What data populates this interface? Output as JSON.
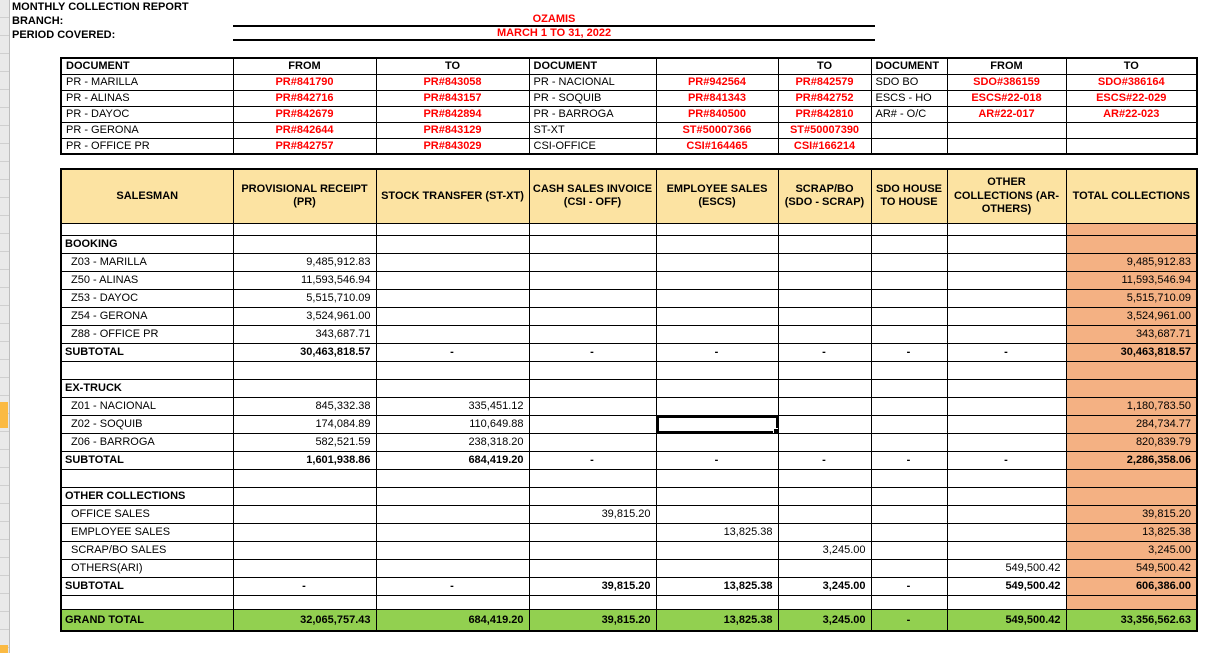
{
  "header": {
    "title": "MONTHLY COLLECTION REPORT",
    "branch_label": "BRANCH:",
    "branch_value": "OZAMIS",
    "period_label": "PERIOD COVERED:",
    "period_value": "MARCH 1 TO 31, 2022"
  },
  "document_table": {
    "header_row": [
      "DOCUMENT",
      "FROM",
      "TO",
      "DOCUMENT",
      "",
      "TO",
      "DOCUMENT",
      "FROM",
      "TO"
    ],
    "rows": [
      [
        "PR - MARILLA",
        "PR#841790",
        "PR#843058",
        "PR - NACIONAL",
        "PR#942564",
        "PR#842579",
        "SDO BO",
        "SDO#386159",
        "SDO#386164"
      ],
      [
        "PR - ALINAS",
        "PR#842716",
        "PR#843157",
        "PR - SOQUIB",
        "PR#841343",
        "PR#842752",
        "ESCS - HO",
        "ESCS#22-018",
        "ESCS#22-029"
      ],
      [
        "PR - DAYOC",
        "PR#842679",
        "PR#842894",
        "PR - BARROGA",
        "PR#840500",
        "PR#842810",
        "AR# - O/C",
        "AR#22-017",
        "AR#22-023"
      ],
      [
        "PR - GERONA",
        "PR#842644",
        "PR#843129",
        "ST-XT",
        "ST#50007366",
        "ST#50007390",
        "",
        "",
        ""
      ],
      [
        "PR - OFFICE PR",
        "PR#842757",
        "PR#843029",
        "CSI-OFFICE",
        "CSI#164465",
        "CSI#166214",
        "",
        "",
        ""
      ]
    ]
  },
  "collections_table": {
    "columns": [
      "SALESMAN",
      "PROVISIONAL RECEIPT (PR)",
      "STOCK TRANSFER (ST-XT)",
      "CASH SALES INVOICE (CSI - OFF)",
      "EMPLOYEE SALES (ESCS)",
      "SCRAP/BO (SDO - SCRAP)",
      "SDO HOUSE TO HOUSE",
      "OTHER COLLECTIONS (AR-OTHERS)",
      "TOTAL COLLECTIONS"
    ],
    "rows": [
      {
        "type": "spacer",
        "h": 12
      },
      {
        "type": "section",
        "label": "BOOKING"
      },
      {
        "type": "detail",
        "label": "Z03 - MARILLA",
        "values": [
          "9,485,912.83",
          "",
          "",
          "",
          "",
          "",
          "",
          "9,485,912.83"
        ]
      },
      {
        "type": "detail",
        "label": "Z50 - ALINAS",
        "values": [
          "11,593,546.94",
          "",
          "",
          "",
          "",
          "",
          "",
          "11,593,546.94"
        ]
      },
      {
        "type": "detail",
        "label": "Z53 - DAYOC",
        "values": [
          "5,515,710.09",
          "",
          "",
          "",
          "",
          "",
          "",
          "5,515,710.09"
        ]
      },
      {
        "type": "detail",
        "label": "Z54 - GERONA",
        "values": [
          "3,524,961.00",
          "",
          "",
          "",
          "",
          "",
          "",
          "3,524,961.00"
        ]
      },
      {
        "type": "detail",
        "label": "Z88 - OFFICE PR",
        "values": [
          "343,687.71",
          "",
          "",
          "",
          "",
          "",
          "",
          "343,687.71"
        ]
      },
      {
        "type": "subtotal",
        "label": "SUBTOTAL",
        "values": [
          "30,463,818.57",
          "-",
          "-",
          "-",
          "-",
          "-",
          "-",
          "30,463,818.57"
        ]
      },
      {
        "type": "spacer",
        "h": 18
      },
      {
        "type": "section",
        "label": "EX-TRUCK"
      },
      {
        "type": "detail",
        "label": "Z01 - NACIONAL",
        "values": [
          "845,332.38",
          "335,451.12",
          "",
          "",
          "",
          "",
          "",
          "1,180,783.50"
        ]
      },
      {
        "type": "detail",
        "label": "Z02 - SOQUIB",
        "values": [
          "174,084.89",
          "110,649.88",
          "",
          "",
          "",
          "",
          "",
          "284,734.77"
        ]
      },
      {
        "type": "detail",
        "label": "Z06 - BARROGA",
        "values": [
          "582,521.59",
          "238,318.20",
          "",
          "",
          "",
          "",
          "",
          "820,839.79"
        ]
      },
      {
        "type": "subtotal",
        "label": "SUBTOTAL",
        "values": [
          "1,601,938.86",
          "684,419.20",
          "-",
          "-",
          "-",
          "-",
          "-",
          "2,286,358.06"
        ]
      },
      {
        "type": "spacer",
        "h": 18
      },
      {
        "type": "section",
        "label": "OTHER COLLECTIONS"
      },
      {
        "type": "detail",
        "label": "OFFICE SALES",
        "values": [
          "",
          "",
          "39,815.20",
          "",
          "",
          "",
          "",
          "39,815.20"
        ]
      },
      {
        "type": "detail",
        "label": "EMPLOYEE SALES",
        "values": [
          "",
          "",
          "",
          "13,825.38",
          "",
          "",
          "",
          "13,825.38"
        ]
      },
      {
        "type": "detail",
        "label": "SCRAP/BO SALES",
        "values": [
          "",
          "",
          "",
          "",
          "3,245.00",
          "",
          "",
          "3,245.00"
        ]
      },
      {
        "type": "detail",
        "label": "OTHERS(ARI)",
        "values": [
          "",
          "",
          "",
          "",
          "",
          "",
          "549,500.42",
          "549,500.42"
        ]
      },
      {
        "type": "subtotal",
        "label": "SUBTOTAL",
        "values": [
          "-",
          "-",
          "39,815.20",
          "13,825.38",
          "3,245.00",
          "-",
          "549,500.42",
          "606,386.00"
        ]
      },
      {
        "type": "spacer",
        "h": 14
      },
      {
        "type": "grand",
        "label": "GRAND TOTAL",
        "values": [
          "32,065,757.43",
          "684,419.20",
          "39,815.20",
          "13,825.38",
          "3,245.00",
          "-",
          "549,500.42",
          "33,356,562.63"
        ]
      }
    ]
  },
  "selected_cell": {
    "row": "Z02 - SOQUIB",
    "column": "EMPLOYEE SALES (ESCS)"
  },
  "colors": {
    "header_fill": "#FCE3A2",
    "total_column_fill": "#F4B183",
    "grand_total_fill": "#92D050",
    "accent_red": "#FF0000",
    "highlight_orange": "#FBBA43"
  }
}
